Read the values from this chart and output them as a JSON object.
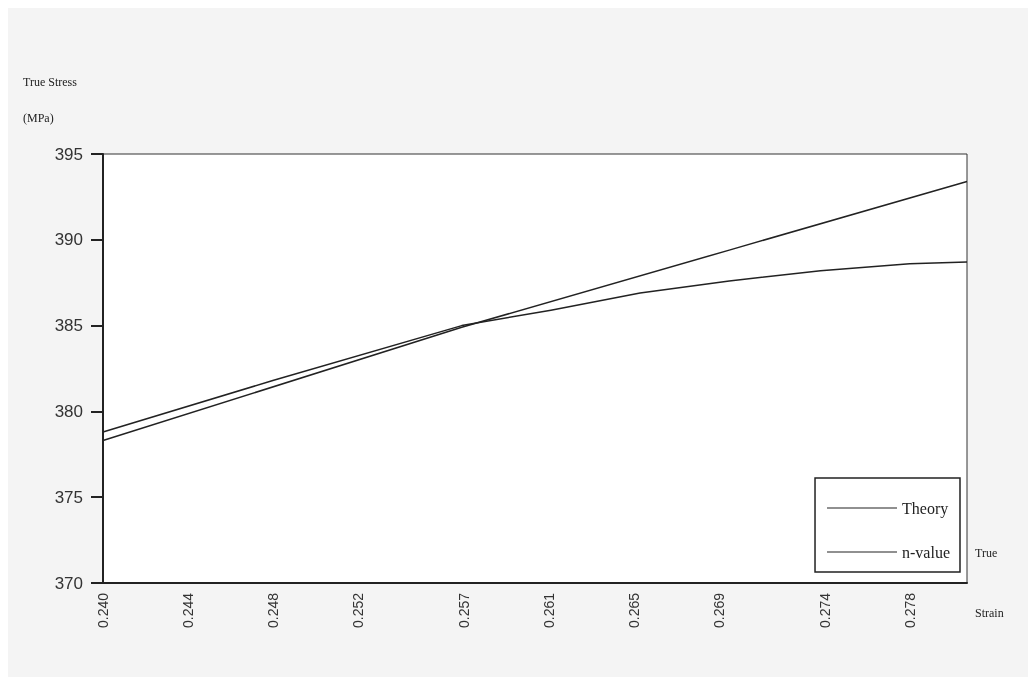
{
  "chart_data": {
    "type": "line",
    "xlabel": "True\nStrain",
    "ylabel": "True Stress\n(MPa)",
    "xlim": [
      0.24,
      0.2807
    ],
    "ylim": [
      370,
      395
    ],
    "yticks": [
      370,
      375,
      380,
      385,
      390,
      395
    ],
    "xticks": [
      {
        "value": 0.24,
        "label": "0.240"
      },
      0.244,
      0.248,
      0.252,
      0.257,
      0.261,
      0.265,
      0.269,
      0.274,
      0.278
    ],
    "grid": false,
    "legend": "bottom right",
    "marker": "none",
    "series": [
      {
        "name": "Theory",
        "color": "#222222",
        "x": [
          0.24,
          0.2569,
          0.2695,
          0.2807
        ],
        "values": [
          378.3,
          384.9,
          389.4,
          393.4
        ]
      },
      {
        "name": "n-value",
        "color": "#222222",
        "x": [
          0.24,
          0.248,
          0.2569,
          0.2611,
          0.2653,
          0.2695,
          0.2738,
          0.278,
          0.2807
        ],
        "values": [
          378.8,
          381.8,
          385.0,
          385.9,
          386.9,
          387.6,
          388.2,
          388.6,
          388.7
        ]
      }
    ]
  }
}
